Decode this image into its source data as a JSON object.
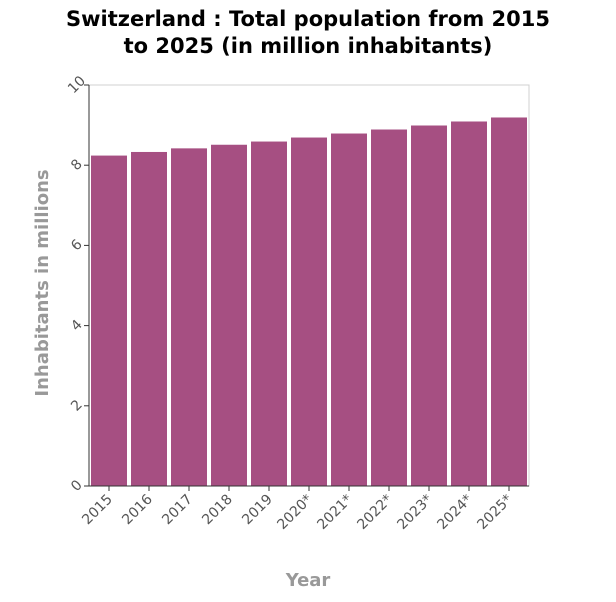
{
  "chart_data": {
    "type": "bar",
    "title_line1": "Switzerland : Total population from 2015",
    "title_line2": "to 2025 (in million inhabitants)",
    "xlabel": "Year",
    "ylabel": "Inhabitants in millions",
    "categories": [
      "2015",
      "2016",
      "2017",
      "2018",
      "2019",
      "2020*",
      "2021*",
      "2022*",
      "2023*",
      "2024*",
      "2025*"
    ],
    "values": [
      8.24,
      8.33,
      8.42,
      8.51,
      8.59,
      8.69,
      8.79,
      8.89,
      8.99,
      9.09,
      9.19
    ],
    "ylim": [
      0,
      10
    ],
    "yticks": [
      0,
      2,
      4,
      6,
      8,
      10
    ],
    "bar_color": "#a64f82",
    "grid": false,
    "legend": "none"
  }
}
